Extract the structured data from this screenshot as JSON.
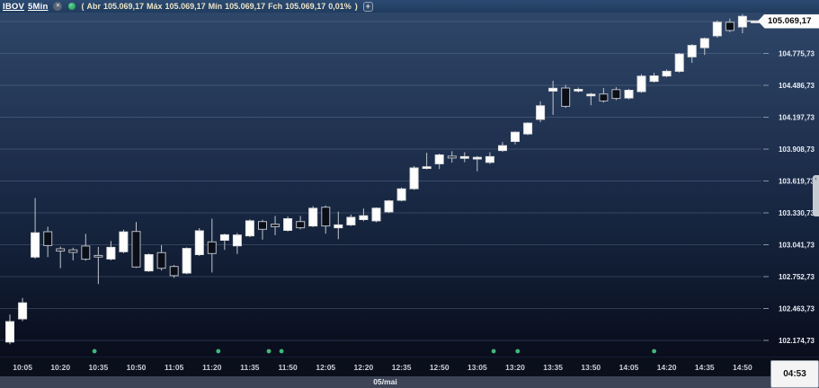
{
  "header": {
    "symbol": "IBOV",
    "timeframe": "5Min",
    "close_icon": "✕",
    "ohlc": {
      "paren_open": "(",
      "open_label": "Abr",
      "open": "105.069,17",
      "high_label": "Máx",
      "high": "105.069,17",
      "low_label": "Mín",
      "low": "105.069,17",
      "close_label": "Fch",
      "close": "105.069,17",
      "change": "0,01%",
      "paren_close": ")"
    },
    "add_button_label": "+"
  },
  "axes": {
    "date_label": "05/mai"
  },
  "footer": {
    "countdown": "04:53"
  },
  "right_edge_tab": {
    "chevron": "‹"
  },
  "chart_data": {
    "type": "candlestick",
    "title": "IBOV 5Min",
    "symbol": "IBOV",
    "interval_minutes": 5,
    "session_date_label": "05/mai",
    "first_candle_time": "10:00",
    "x_tick_labels": [
      "10:05",
      "10:20",
      "10:35",
      "10:50",
      "11:05",
      "11:20",
      "11:35",
      "11:50",
      "12:05",
      "12:20",
      "12:35",
      "12:50",
      "13:05",
      "13:20",
      "13:35",
      "13:50",
      "14:05",
      "14:20",
      "14:35",
      "14:50"
    ],
    "x_tick_first_candle_index": 1,
    "x_tick_every_n_candles": 3,
    "last_price": 105069.17,
    "last_price_label": "105.069,17",
    "countdown_to_next_candle": "04:53",
    "ylim": [
      102030,
      105180
    ],
    "grid": true,
    "y_gridlines": [
      {
        "value": 102174.73,
        "label": "102.174,73"
      },
      {
        "value": 102463.73,
        "label": "102.463,73"
      },
      {
        "value": 102752.73,
        "label": "102.752,73"
      },
      {
        "value": 103041.73,
        "label": "103.041,73"
      },
      {
        "value": 103330.73,
        "label": "103.330,73"
      },
      {
        "value": 103619.73,
        "label": "103.619,73"
      },
      {
        "value": 103908.73,
        "label": "103.908,73"
      },
      {
        "value": 104197.73,
        "label": "104.197,73"
      },
      {
        "value": 104486.73,
        "label": "104.486,73"
      },
      {
        "value": 104775.73,
        "label": "104.775,73"
      },
      {
        "value": 105064.73,
        "label": null
      }
    ],
    "candles_ohlc": [
      [
        102160,
        102410,
        102140,
        102345
      ],
      [
        102370,
        102560,
        102350,
        102515
      ],
      [
        102930,
        103465,
        102915,
        103150
      ],
      [
        103160,
        103205,
        102930,
        103035
      ],
      [
        103005,
        103025,
        102830,
        102985
      ],
      [
        102995,
        103015,
        102900,
        102972
      ],
      [
        103030,
        103140,
        102898,
        102910
      ],
      [
        102945,
        103022,
        102685,
        102930
      ],
      [
        102912,
        103075,
        102900,
        103018
      ],
      [
        102978,
        103178,
        102965,
        103158
      ],
      [
        103162,
        103248,
        102832,
        102840
      ],
      [
        102805,
        102962,
        102795,
        102952
      ],
      [
        102970,
        103038,
        102808,
        102828
      ],
      [
        102845,
        102858,
        102742,
        102762
      ],
      [
        102785,
        103018,
        102775,
        103008
      ],
      [
        102952,
        103192,
        102940,
        103168
      ],
      [
        103068,
        103278,
        102790,
        102962
      ],
      [
        103082,
        103142,
        102995,
        103132
      ],
      [
        103032,
        103148,
        102958,
        103130
      ],
      [
        103122,
        103272,
        103110,
        103258
      ],
      [
        103252,
        103268,
        103088,
        103182
      ],
      [
        103228,
        103302,
        103128,
        103205
      ],
      [
        103172,
        103298,
        103162,
        103278
      ],
      [
        103252,
        103302,
        103182,
        103196
      ],
      [
        103212,
        103392,
        103202,
        103372
      ],
      [
        103382,
        103398,
        103142,
        103212
      ],
      [
        103196,
        103342,
        103092,
        103222
      ],
      [
        103222,
        103315,
        103212,
        103290
      ],
      [
        103270,
        103370,
        103255,
        103305
      ],
      [
        103258,
        103380,
        103245,
        103373
      ],
      [
        103340,
        103448,
        103330,
        103439
      ],
      [
        103445,
        103560,
        103435,
        103548
      ],
      [
        103550,
        103755,
        103540,
        103738
      ],
      [
        103740,
        103875,
        103725,
        103748
      ],
      [
        103775,
        103868,
        103728,
        103856
      ],
      [
        103845,
        103890,
        103786,
        103828
      ],
      [
        103836,
        103880,
        103790,
        103840
      ],
      [
        103830,
        103846,
        103708,
        103834
      ],
      [
        103788,
        103880,
        103774,
        103840
      ],
      [
        103896,
        103972,
        103884,
        103940
      ],
      [
        103978,
        104070,
        103952,
        104062
      ],
      [
        104046,
        104152,
        104036,
        104144
      ],
      [
        104178,
        104342,
        104153,
        104301
      ],
      [
        104435,
        104528,
        104219,
        104460
      ],
      [
        104462,
        104492,
        104282,
        104296
      ],
      [
        104440,
        104466,
        104422,
        104450
      ],
      [
        104398,
        104418,
        104306,
        104406
      ],
      [
        104408,
        104462,
        104330,
        104345
      ],
      [
        104448,
        104470,
        104352,
        104368
      ],
      [
        104372,
        104455,
        104360,
        104442
      ],
      [
        104430,
        104588,
        104418,
        104570
      ],
      [
        104522,
        104600,
        104512,
        104572
      ],
      [
        104572,
        104630,
        104560,
        104614
      ],
      [
        104614,
        104780,
        104602,
        104770
      ],
      [
        104745,
        104860,
        104690,
        104848
      ],
      [
        104828,
        104920,
        104762,
        104910
      ],
      [
        104935,
        105075,
        104918,
        105058
      ],
      [
        105058,
        105092,
        104968,
        104984
      ],
      [
        105016,
        105132,
        104958,
        105112
      ],
      [
        105069.17,
        105069.17,
        105069.17,
        105069.17
      ]
    ],
    "event_marker_candle_indices": [
      6.7,
      16.5,
      20.5,
      21.5,
      38.3,
      40.2,
      51
    ],
    "colors": {
      "bull_body": "#ffffff",
      "bull_border": "#e2e2e2",
      "bear_body": "#0a0e17",
      "bear_border": "#b7bcc6",
      "wick": "#c2c6cd",
      "grid": "rgba(138,155,185,0.28)",
      "tick": "#8a93a5",
      "axis_text": "#e8ecf3",
      "event_marker": "#3db97d",
      "last_price_line": "#d6dade"
    }
  }
}
